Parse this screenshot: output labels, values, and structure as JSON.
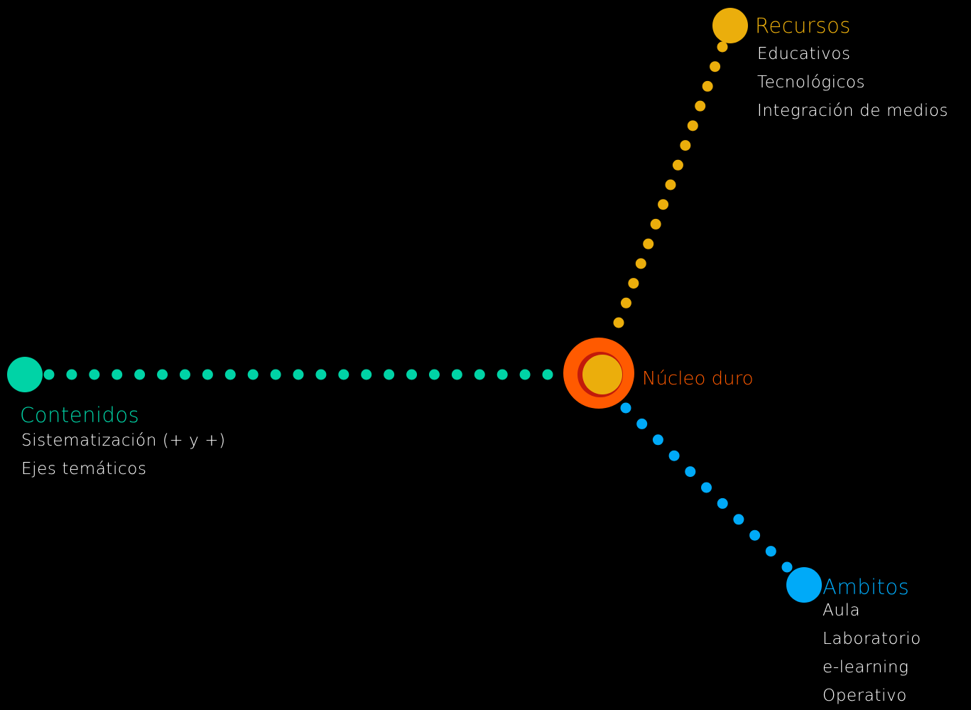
{
  "core": {
    "label": "Núcleo duro",
    "outer_color": "#FF5A00",
    "ring_color": "#C21A0A",
    "inner_color": "#EBAE0C",
    "label_color": "#FF5A00"
  },
  "branches": {
    "recursos": {
      "heading": "Recursos",
      "color": "#EBAE0C",
      "items": [
        "Educativos",
        "Tecnológicos",
        "Integración de medios"
      ]
    },
    "contenidos": {
      "heading": "Contenidos",
      "color": "#00D3A6",
      "items": [
        "Sistematización (+ y +)",
        "Ejes temáticos"
      ]
    },
    "ambitos": {
      "heading": "Ambitos",
      "color": "#00AAF8",
      "items": [
        "Aula",
        "Laboratorio",
        "e-learning",
        "Operativo"
      ]
    }
  }
}
